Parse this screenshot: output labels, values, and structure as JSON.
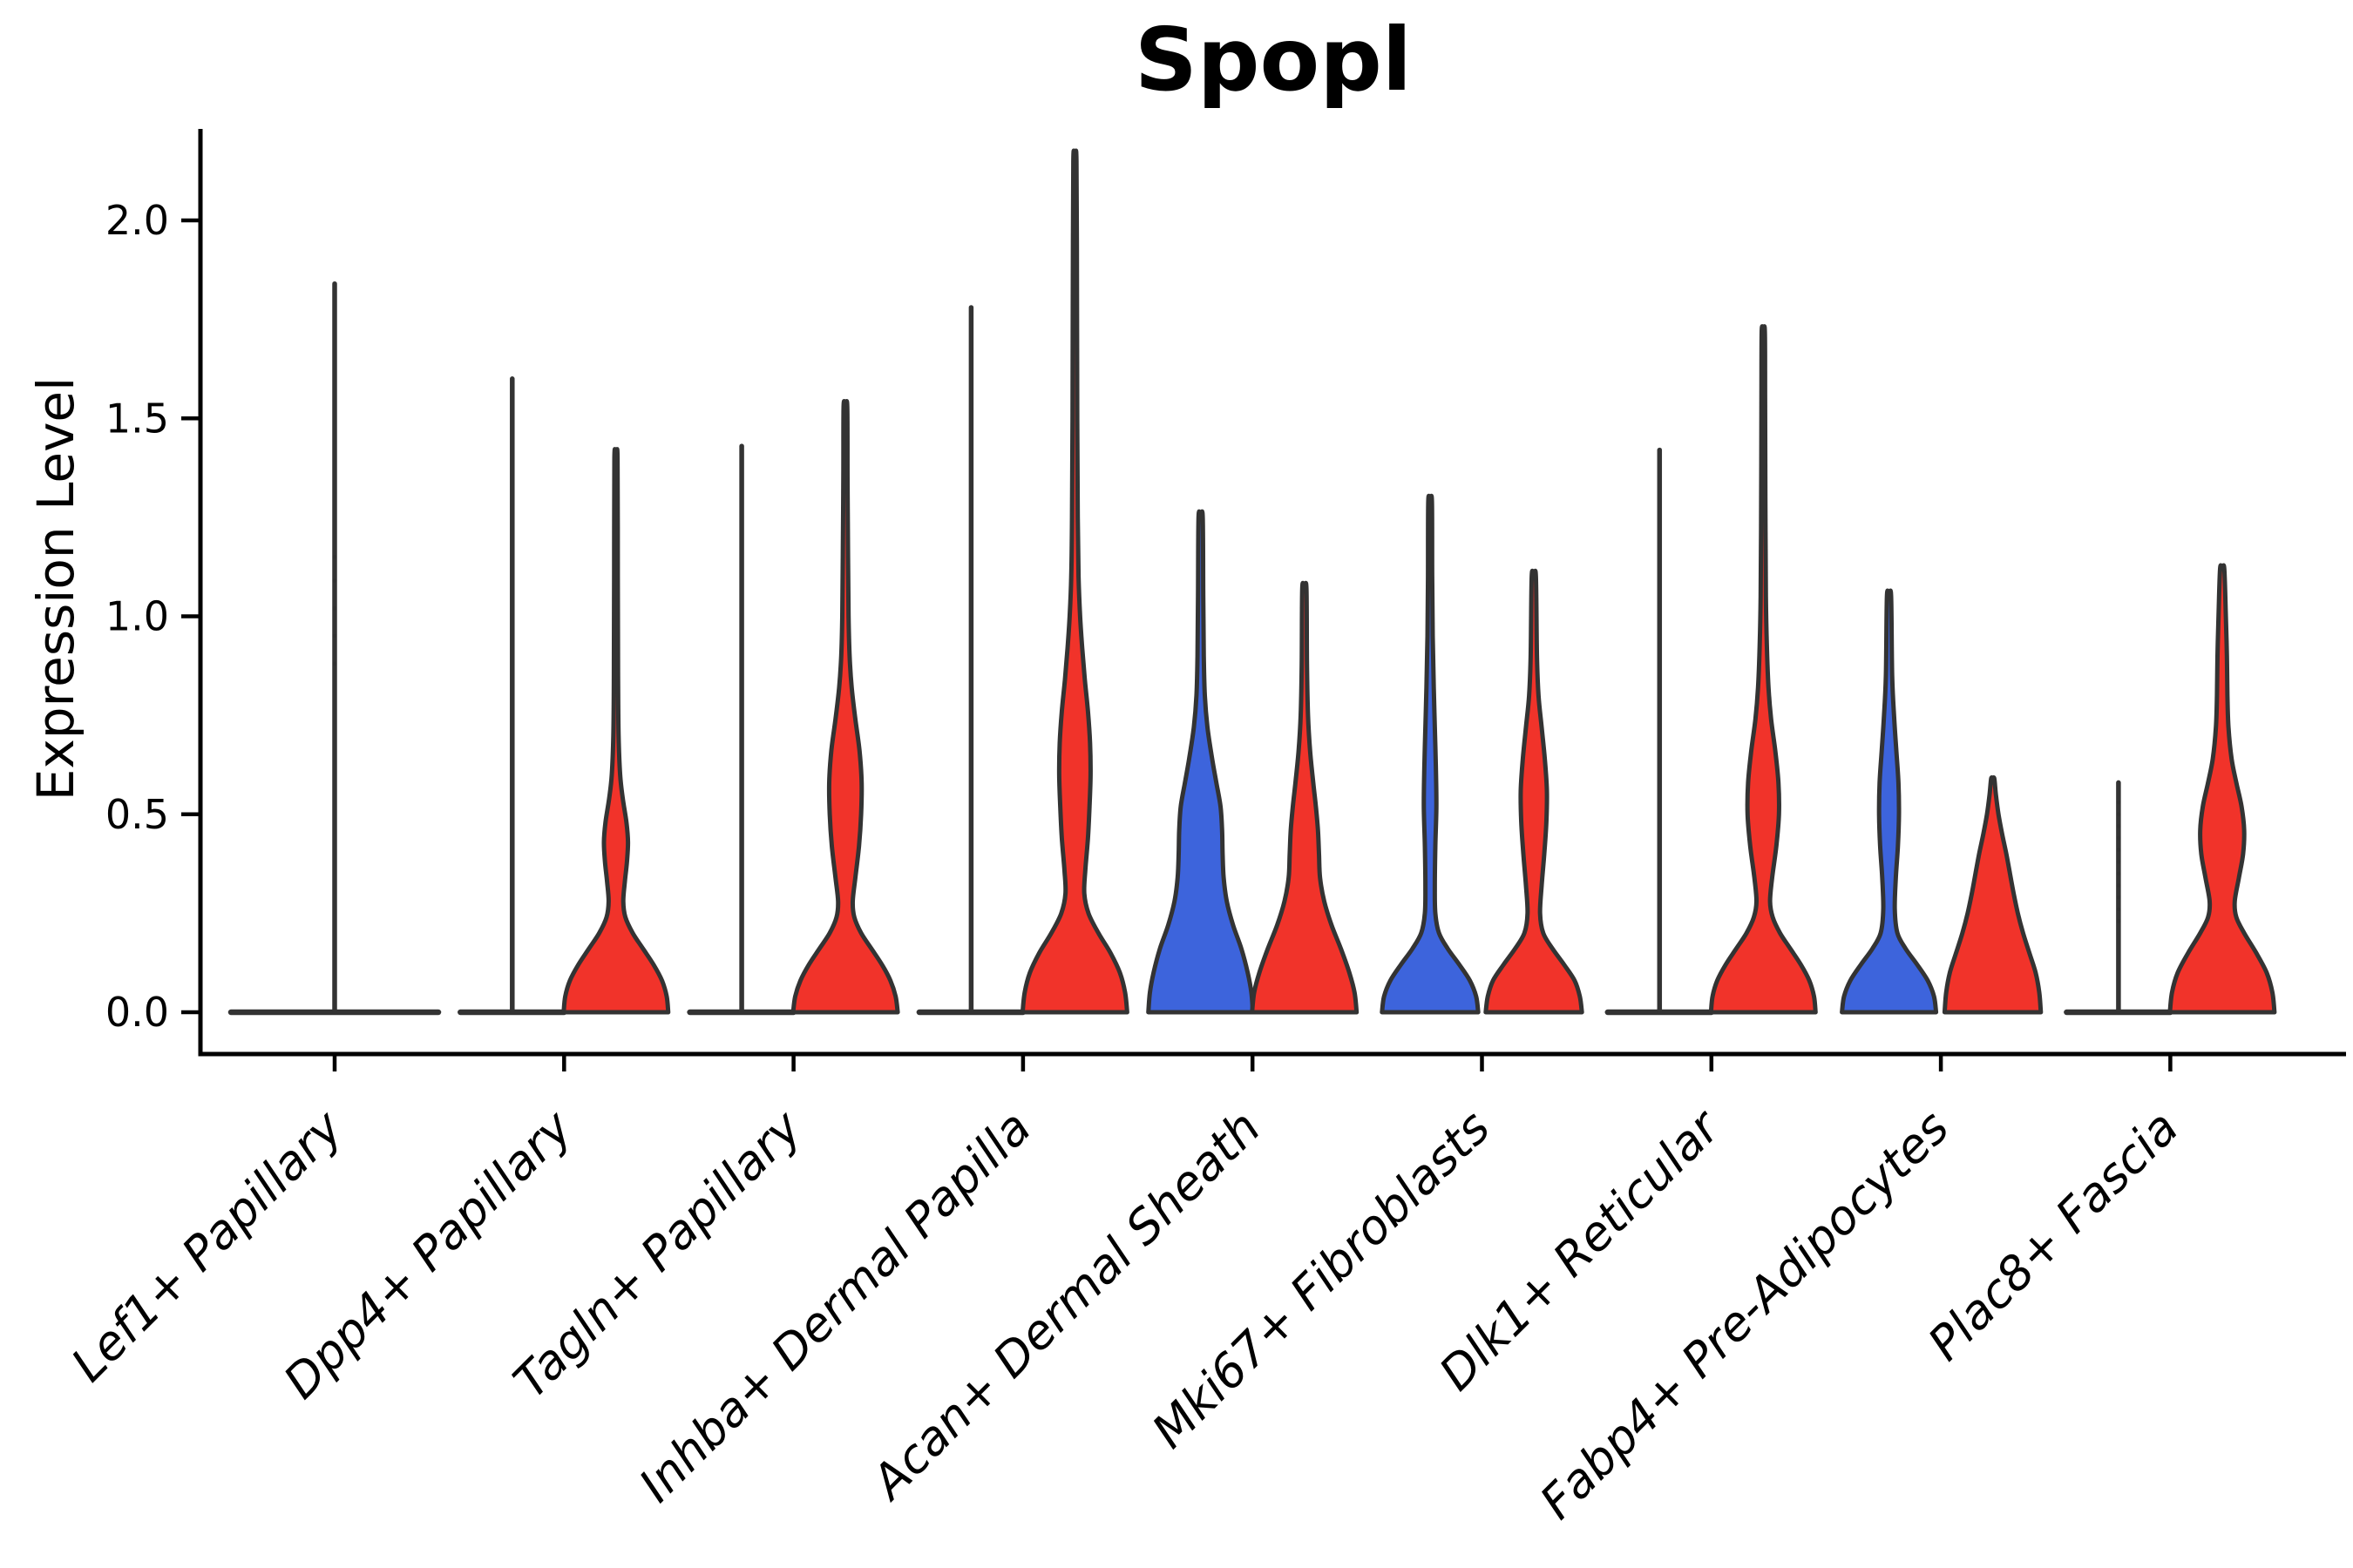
{
  "title": "Spopl",
  "ylabel": "Expression Level",
  "colors": {
    "group_blue": "#3D64DC",
    "group_red": "#F1332A",
    "violin_outline": "#333333",
    "axis": "#000000",
    "background": "#ffffff"
  },
  "chart_data": {
    "type": "violin",
    "title": "Spopl",
    "xlabel": "",
    "ylabel": "Expression Level",
    "grid": false,
    "legend": "none",
    "ylim": [
      -0.11,
      2.23
    ],
    "y_ticks": [
      0.0,
      0.5,
      1.0,
      1.5,
      2.0
    ],
    "y_tick_labels": [
      "0.0",
      "0.5",
      "1.0",
      "1.5",
      "2.0"
    ],
    "categories": [
      "Lef1+ Papillary",
      "Dpp4+ Papillary",
      "Tagln+ Papillary",
      "Inhba+ Dermal Papilla",
      "Acan+ Dermal Sheath",
      "Mki67+ Fibroblasts",
      "Dlk1+ Reticular",
      "Fabp4+ Pre-Adipocytes",
      "Plac8+ Fascia"
    ],
    "groups": [
      {
        "name": "group-1",
        "color": "#3D64DC",
        "side": "left"
      },
      {
        "name": "group-2",
        "color": "#F1332A",
        "side": "right"
      }
    ],
    "violins": [
      {
        "category_index": 0,
        "group": 1,
        "style": "collapsed-spike",
        "offset": 0.0,
        "flat_half_width": 0.452,
        "max": 1.84,
        "dots": [
          0.88,
          0.95,
          1.02,
          1.09,
          1.15
        ]
      },
      {
        "category_index": 1,
        "group": 1,
        "style": "collapsed-spike",
        "offset": -0.226,
        "flat_half_width": 0.226,
        "max": 1.6,
        "dots": []
      },
      {
        "category_index": 1,
        "group": 2,
        "style": "density",
        "offset": 0.226,
        "max": 1.4,
        "profile": [
          [
            0,
            1.0
          ],
          [
            0.04,
            0.97
          ],
          [
            0.08,
            0.88
          ],
          [
            0.12,
            0.72
          ],
          [
            0.16,
            0.52
          ],
          [
            0.2,
            0.32
          ],
          [
            0.24,
            0.18
          ],
          [
            0.28,
            0.14
          ],
          [
            0.33,
            0.17
          ],
          [
            0.38,
            0.21
          ],
          [
            0.43,
            0.23
          ],
          [
            0.48,
            0.2
          ],
          [
            0.54,
            0.13
          ],
          [
            0.6,
            0.08
          ],
          [
            0.7,
            0.05
          ],
          [
            0.85,
            0.04
          ],
          [
            1.1,
            0.035
          ],
          [
            1.4,
            0.03
          ]
        ]
      },
      {
        "category_index": 2,
        "group": 1,
        "style": "collapsed-spike",
        "offset": -0.226,
        "flat_half_width": 0.226,
        "max": 1.43,
        "dots": []
      },
      {
        "category_index": 2,
        "group": 2,
        "style": "density",
        "offset": 0.226,
        "max": 1.53,
        "profile": [
          [
            0,
            1.0
          ],
          [
            0.04,
            0.96
          ],
          [
            0.08,
            0.86
          ],
          [
            0.12,
            0.7
          ],
          [
            0.16,
            0.5
          ],
          [
            0.2,
            0.3
          ],
          [
            0.24,
            0.17
          ],
          [
            0.28,
            0.14
          ],
          [
            0.34,
            0.19
          ],
          [
            0.42,
            0.26
          ],
          [
            0.5,
            0.3
          ],
          [
            0.58,
            0.31
          ],
          [
            0.66,
            0.27
          ],
          [
            0.74,
            0.19
          ],
          [
            0.82,
            0.12
          ],
          [
            0.9,
            0.08
          ],
          [
            1.0,
            0.06
          ],
          [
            1.15,
            0.05
          ],
          [
            1.35,
            0.04
          ],
          [
            1.53,
            0.035
          ]
        ]
      },
      {
        "category_index": 3,
        "group": 1,
        "style": "collapsed-spike",
        "offset": -0.226,
        "flat_half_width": 0.226,
        "max": 1.78,
        "dots": []
      },
      {
        "category_index": 3,
        "group": 2,
        "style": "density",
        "offset": 0.226,
        "max": 2.15,
        "profile": [
          [
            0,
            1.0
          ],
          [
            0.05,
            0.96
          ],
          [
            0.1,
            0.86
          ],
          [
            0.15,
            0.68
          ],
          [
            0.2,
            0.45
          ],
          [
            0.25,
            0.26
          ],
          [
            0.3,
            0.18
          ],
          [
            0.36,
            0.2
          ],
          [
            0.44,
            0.25
          ],
          [
            0.52,
            0.28
          ],
          [
            0.6,
            0.3
          ],
          [
            0.68,
            0.29
          ],
          [
            0.76,
            0.25
          ],
          [
            0.84,
            0.19
          ],
          [
            0.92,
            0.14
          ],
          [
            1.0,
            0.1
          ],
          [
            1.1,
            0.07
          ],
          [
            1.25,
            0.055
          ],
          [
            1.5,
            0.045
          ],
          [
            1.8,
            0.04
          ],
          [
            2.15,
            0.03
          ]
        ]
      },
      {
        "category_index": 4,
        "group": 1,
        "style": "density",
        "offset": -0.226,
        "max": 1.25,
        "profile": [
          [
            0,
            1.0
          ],
          [
            0.05,
            0.97
          ],
          [
            0.1,
            0.9
          ],
          [
            0.16,
            0.78
          ],
          [
            0.22,
            0.62
          ],
          [
            0.28,
            0.5
          ],
          [
            0.34,
            0.44
          ],
          [
            0.4,
            0.42
          ],
          [
            0.46,
            0.41
          ],
          [
            0.52,
            0.38
          ],
          [
            0.58,
            0.3
          ],
          [
            0.64,
            0.22
          ],
          [
            0.72,
            0.13
          ],
          [
            0.8,
            0.08
          ],
          [
            0.9,
            0.06
          ],
          [
            1.05,
            0.05
          ],
          [
            1.25,
            0.04
          ]
        ]
      },
      {
        "category_index": 4,
        "group": 2,
        "style": "density",
        "offset": 0.226,
        "max": 1.07,
        "profile": [
          [
            0,
            1.0
          ],
          [
            0.05,
            0.96
          ],
          [
            0.1,
            0.86
          ],
          [
            0.16,
            0.7
          ],
          [
            0.22,
            0.52
          ],
          [
            0.28,
            0.38
          ],
          [
            0.34,
            0.3
          ],
          [
            0.4,
            0.28
          ],
          [
            0.46,
            0.26
          ],
          [
            0.52,
            0.22
          ],
          [
            0.58,
            0.17
          ],
          [
            0.66,
            0.11
          ],
          [
            0.75,
            0.07
          ],
          [
            0.88,
            0.05
          ],
          [
            1.07,
            0.04
          ]
        ]
      },
      {
        "category_index": 5,
        "group": 1,
        "style": "density",
        "offset": -0.226,
        "max": 1.29,
        "profile": [
          [
            0,
            0.92
          ],
          [
            0.04,
            0.88
          ],
          [
            0.08,
            0.76
          ],
          [
            0.12,
            0.56
          ],
          [
            0.16,
            0.34
          ],
          [
            0.2,
            0.17
          ],
          [
            0.25,
            0.1
          ],
          [
            0.32,
            0.09
          ],
          [
            0.42,
            0.1
          ],
          [
            0.52,
            0.12
          ],
          [
            0.62,
            0.11
          ],
          [
            0.72,
            0.09
          ],
          [
            0.82,
            0.07
          ],
          [
            0.95,
            0.05
          ],
          [
            1.1,
            0.04
          ],
          [
            1.29,
            0.035
          ]
        ]
      },
      {
        "category_index": 5,
        "group": 2,
        "style": "density",
        "offset": 0.226,
        "max": 1.1,
        "profile": [
          [
            0,
            0.92
          ],
          [
            0.04,
            0.88
          ],
          [
            0.08,
            0.78
          ],
          [
            0.12,
            0.58
          ],
          [
            0.16,
            0.36
          ],
          [
            0.2,
            0.18
          ],
          [
            0.25,
            0.12
          ],
          [
            0.32,
            0.15
          ],
          [
            0.4,
            0.2
          ],
          [
            0.48,
            0.24
          ],
          [
            0.56,
            0.25
          ],
          [
            0.64,
            0.21
          ],
          [
            0.72,
            0.15
          ],
          [
            0.8,
            0.09
          ],
          [
            0.9,
            0.06
          ],
          [
            1.1,
            0.04
          ]
        ]
      },
      {
        "category_index": 6,
        "group": 1,
        "style": "collapsed-spike",
        "offset": -0.226,
        "flat_half_width": 0.226,
        "max": 1.42,
        "dots": []
      },
      {
        "category_index": 6,
        "group": 2,
        "style": "density",
        "offset": 0.226,
        "max": 1.72,
        "profile": [
          [
            0,
            1.0
          ],
          [
            0.04,
            0.97
          ],
          [
            0.08,
            0.88
          ],
          [
            0.12,
            0.72
          ],
          [
            0.16,
            0.52
          ],
          [
            0.2,
            0.32
          ],
          [
            0.24,
            0.18
          ],
          [
            0.28,
            0.13
          ],
          [
            0.34,
            0.17
          ],
          [
            0.42,
            0.25
          ],
          [
            0.5,
            0.3
          ],
          [
            0.58,
            0.29
          ],
          [
            0.66,
            0.23
          ],
          [
            0.74,
            0.15
          ],
          [
            0.82,
            0.1
          ],
          [
            0.92,
            0.07
          ],
          [
            1.05,
            0.05
          ],
          [
            1.3,
            0.04
          ],
          [
            1.55,
            0.035
          ],
          [
            1.72,
            0.03
          ]
        ]
      },
      {
        "category_index": 7,
        "group": 1,
        "style": "density",
        "offset": -0.226,
        "max": 1.05,
        "profile": [
          [
            0,
            0.9
          ],
          [
            0.04,
            0.86
          ],
          [
            0.08,
            0.74
          ],
          [
            0.12,
            0.54
          ],
          [
            0.16,
            0.32
          ],
          [
            0.2,
            0.16
          ],
          [
            0.26,
            0.11
          ],
          [
            0.34,
            0.13
          ],
          [
            0.42,
            0.17
          ],
          [
            0.5,
            0.19
          ],
          [
            0.58,
            0.18
          ],
          [
            0.66,
            0.14
          ],
          [
            0.74,
            0.1
          ],
          [
            0.85,
            0.06
          ],
          [
            1.05,
            0.04
          ]
        ]
      },
      {
        "category_index": 7,
        "group": 2,
        "style": "density",
        "offset": 0.226,
        "max": 0.59,
        "profile": [
          [
            0,
            0.92
          ],
          [
            0.05,
            0.89
          ],
          [
            0.1,
            0.82
          ],
          [
            0.15,
            0.7
          ],
          [
            0.2,
            0.58
          ],
          [
            0.25,
            0.48
          ],
          [
            0.3,
            0.4
          ],
          [
            0.35,
            0.33
          ],
          [
            0.4,
            0.26
          ],
          [
            0.45,
            0.18
          ],
          [
            0.5,
            0.11
          ],
          [
            0.55,
            0.06
          ],
          [
            0.59,
            0.03
          ]
        ]
      },
      {
        "category_index": 8,
        "group": 1,
        "style": "collapsed-spike",
        "offset": -0.226,
        "flat_half_width": 0.226,
        "max": 0.58,
        "dots": [
          0.23,
          0.26,
          0.29,
          0.32,
          0.35,
          0.38,
          0.41,
          0.44,
          0.47,
          0.5,
          0.53
        ]
      },
      {
        "category_index": 8,
        "group": 2,
        "style": "density",
        "offset": 0.226,
        "max": 1.12,
        "profile": [
          [
            0,
            1.0
          ],
          [
            0.05,
            0.96
          ],
          [
            0.1,
            0.85
          ],
          [
            0.15,
            0.65
          ],
          [
            0.2,
            0.42
          ],
          [
            0.24,
            0.27
          ],
          [
            0.28,
            0.24
          ],
          [
            0.34,
            0.32
          ],
          [
            0.4,
            0.4
          ],
          [
            0.46,
            0.42
          ],
          [
            0.52,
            0.37
          ],
          [
            0.58,
            0.27
          ],
          [
            0.64,
            0.18
          ],
          [
            0.72,
            0.12
          ],
          [
            0.8,
            0.1
          ],
          [
            0.9,
            0.09
          ],
          [
            1.0,
            0.07
          ],
          [
            1.12,
            0.04
          ]
        ]
      }
    ]
  }
}
